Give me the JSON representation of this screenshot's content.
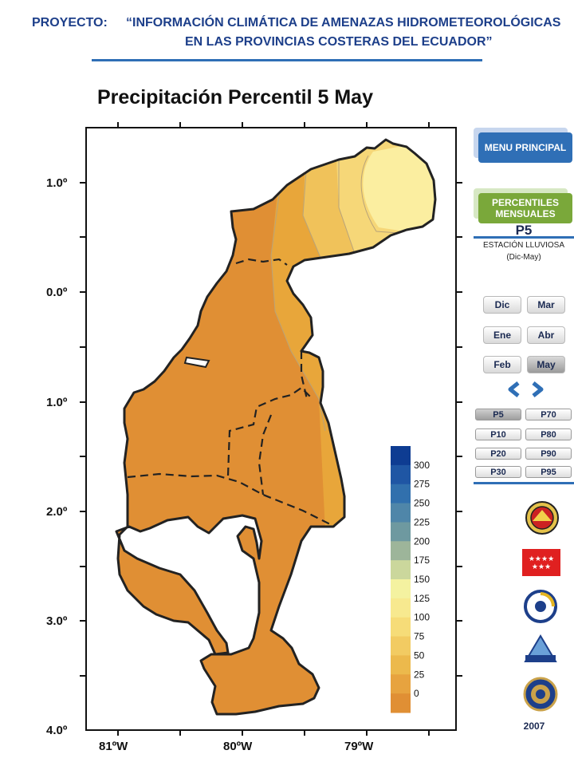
{
  "header": {
    "line1_prefix": "PROYECTO:",
    "line1_title": "“INFORMACIÓN CLIMÁTICA DE AMENAZAS HIDROMETEOROLÓGICAS",
    "line2_title": "EN LAS PROVINCIAS COSTERAS DEL ECUADOR”"
  },
  "map": {
    "title": "Precipitación Percentil 5 May",
    "lat_labels": [
      "1.0º",
      "0.0º",
      "1.0º",
      "2.0º",
      "3.0º",
      "4.0º"
    ],
    "lon_labels": [
      "81ºW",
      "80ºW",
      "79ºW"
    ],
    "colors": {
      "dark": "#e08f34",
      "mid1": "#e8a63a",
      "mid2": "#f0c25a",
      "mid3": "#f6d778",
      "light": "#fbeea0",
      "border": "#222222"
    }
  },
  "legend": {
    "ticks": [
      "300",
      "275",
      "250",
      "225",
      "200",
      "175",
      "150",
      "125",
      "100",
      "75",
      "50",
      "25",
      "0"
    ],
    "colors": [
      "#0e3c92",
      "#1f56a4",
      "#3170ad",
      "#4f86a9",
      "#6e99a0",
      "#9db59a",
      "#cbd79c",
      "#f4f2a0",
      "#f7e98f",
      "#f6dc78",
      "#f2cb62",
      "#ecb94c",
      "#e7a33f",
      "#e08f34"
    ]
  },
  "sidebar": {
    "menu_principal": "MENU PRINCIPAL",
    "percentiles_mensuales": "PERCENTILES MENSUALES",
    "current_title": "P5",
    "season": "ESTACIÓN LLUVIOSA",
    "season_range": "(Dic-May)",
    "months": [
      "Dic",
      "Mar",
      "Ene",
      "Abr",
      "Feb",
      "May"
    ],
    "selected_month": "May",
    "percentiles": [
      "P5",
      "P70",
      "P10",
      "P80",
      "P20",
      "P90",
      "P30",
      "P95"
    ],
    "selected_percentile": "P5",
    "year": "2007"
  }
}
